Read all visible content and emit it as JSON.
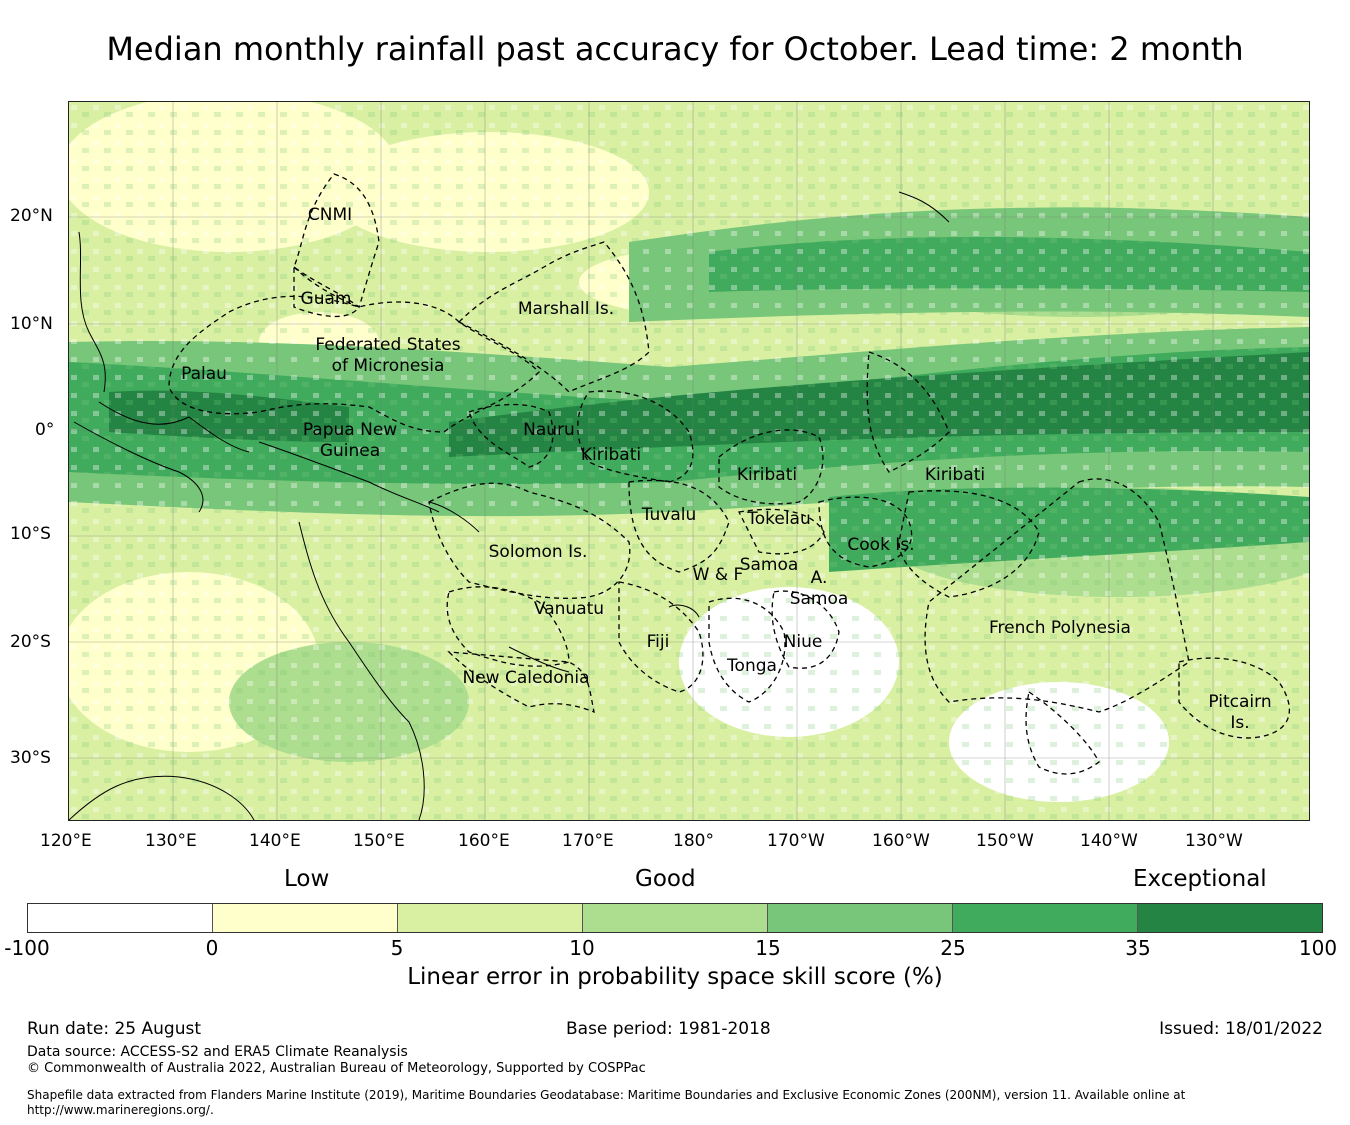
{
  "title": "Median monthly rainfall past accuracy for October. Lead time: 2 month",
  "map": {
    "lon_labels": [
      "120°E",
      "130°E",
      "140°E",
      "150°E",
      "160°E",
      "170°E",
      "180°",
      "170°W",
      "160°W",
      "150°W",
      "140°W",
      "130°W"
    ],
    "lat_labels": [
      "20°N",
      "10°N",
      "0°",
      "10°S",
      "20°S",
      "30°S"
    ],
    "regions": [
      {
        "name": "CNMI",
        "lines": [
          "CNMI"
        ]
      },
      {
        "name": "Guam",
        "lines": [
          "Guam"
        ]
      },
      {
        "name": "Marshall Is.",
        "lines": [
          "Marshall Is."
        ]
      },
      {
        "name": "Federated States of Micronesia",
        "lines": [
          "Federated States",
          "of Micronesia"
        ]
      },
      {
        "name": "Palau",
        "lines": [
          "Palau"
        ]
      },
      {
        "name": "Papua New Guinea",
        "lines": [
          "Papua New",
          "Guinea"
        ]
      },
      {
        "name": "Nauru",
        "lines": [
          "Nauru"
        ]
      },
      {
        "name": "Kiribati",
        "lines": [
          "Kiribati"
        ]
      },
      {
        "name": "Kiribati",
        "lines": [
          "Kiribati"
        ]
      },
      {
        "name": "Kiribati",
        "lines": [
          "Kiribati"
        ]
      },
      {
        "name": "Tuvalu",
        "lines": [
          "Tuvalu"
        ]
      },
      {
        "name": "Tokelau",
        "lines": [
          "Tokelau"
        ]
      },
      {
        "name": "Solomon Is.",
        "lines": [
          "Solomon Is."
        ]
      },
      {
        "name": "Cook Is.",
        "lines": [
          "Cook Is."
        ]
      },
      {
        "name": "Samoa",
        "lines": [
          "Samoa"
        ]
      },
      {
        "name": "W & F",
        "lines": [
          "W & F"
        ]
      },
      {
        "name": "A. Samoa",
        "lines": [
          "A.",
          "Samoa"
        ]
      },
      {
        "name": "Vanuatu",
        "lines": [
          "Vanuatu"
        ]
      },
      {
        "name": "Fiji",
        "lines": [
          "Fiji"
        ]
      },
      {
        "name": "Niue",
        "lines": [
          "Niue"
        ]
      },
      {
        "name": "Tonga",
        "lines": [
          "Tonga"
        ]
      },
      {
        "name": "French Polynesia",
        "lines": [
          "French Polynesia"
        ]
      },
      {
        "name": "New Caledonia",
        "lines": [
          "New Caledonia"
        ]
      },
      {
        "name": "Pitcairn Is.",
        "lines": [
          "Pitcairn",
          "Is."
        ]
      }
    ]
  },
  "legend": {
    "categories": [
      "Low",
      "Good",
      "Exceptional"
    ],
    "ticks": [
      "-100",
      "0",
      "5",
      "10",
      "15",
      "25",
      "35",
      "100"
    ],
    "colors": [
      "#ffffff",
      "#ffffcc",
      "#d9f0a3",
      "#addd8e",
      "#78c679",
      "#41ab5d",
      "#238443"
    ],
    "title": "Linear error in probability space skill score (%)"
  },
  "footer": {
    "run_date": "Run date: 25 August",
    "base_period": "Base period: 1981-2018",
    "issued": "Issued: 18/01/2022",
    "data_source": "Data source: ACCESS-S2 and ERA5 Climate Reanalysis",
    "copyright": "© Commonwealth of Australia 2022, Australian Bureau of Meteorology, Supported by COSPPac",
    "shapefile": "Shapefile data extracted from Flanders Marine Institute (2019), Maritime Boundaries Geodatabase: Maritime Boundaries and Exclusive Economic Zones (200NM), version 11. Available online at http://www.marineregions.org/."
  }
}
